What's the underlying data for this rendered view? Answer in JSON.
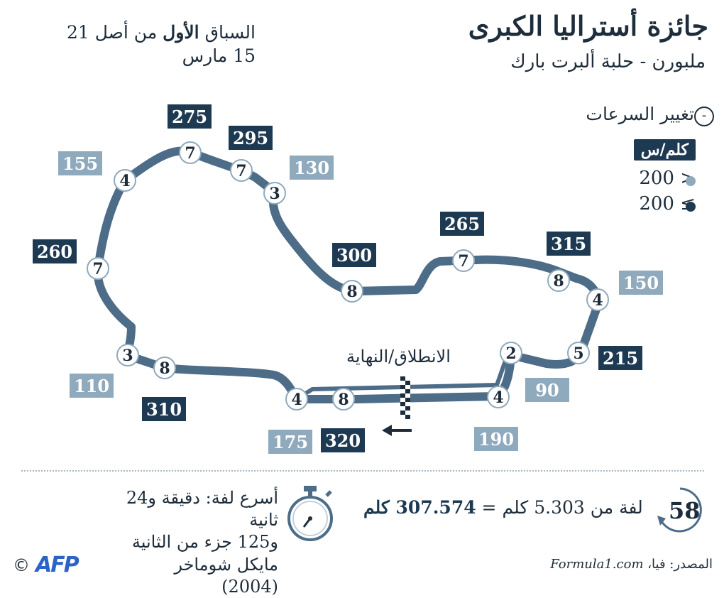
{
  "title": "جائزة أستراليا الكبرى",
  "subtitle": "ملبورن - حلبة ألبرت بارك",
  "race_info": {
    "line1_prefix": "السباق ",
    "line1_bold": "الأول",
    "line1_suffix": " من أصل 21",
    "date": "15 مارس"
  },
  "legend": {
    "minus_symbol": "-",
    "title": "تغيير السرعات",
    "unit": "كلم/س",
    "low_label": "200 >",
    "high_label": "200 ≤",
    "low_color": "#8fa9bd",
    "high_color": "#1d3a52"
  },
  "circuit": {
    "start_label": "الانطلاق/النهاية",
    "gears": [
      "7",
      "7",
      "3",
      "4",
      "7",
      "3",
      "8",
      "8",
      "7",
      "8",
      "4",
      "5",
      "2",
      "4",
      "8",
      "4"
    ],
    "speeds_high": [
      "275",
      "295",
      "260",
      "300",
      "265",
      "315",
      "215",
      "310",
      "320"
    ],
    "speeds_low": [
      "155",
      "130",
      "150",
      "110",
      "90",
      "175",
      "190"
    ]
  },
  "laps": {
    "count": "58",
    "text_prefix": "لفة من 5.303 كلم = ",
    "total": "307.574 كلم"
  },
  "fastest_lap": {
    "line1": "أسرع لفة: دقيقة و24 ثانية",
    "line2": "و125 جزء من الثانية",
    "line3": "مايكل شوماخر (2004)"
  },
  "source": {
    "prefix": "المصدر: فيا، ",
    "site": "Formula1.com"
  },
  "logo_text": "AFP",
  "copyright": "©",
  "icons": [
    "stopwatch-icon",
    "lap-counter-icon",
    "checkered-flag-icon",
    "direction-arrow-icon"
  ]
}
